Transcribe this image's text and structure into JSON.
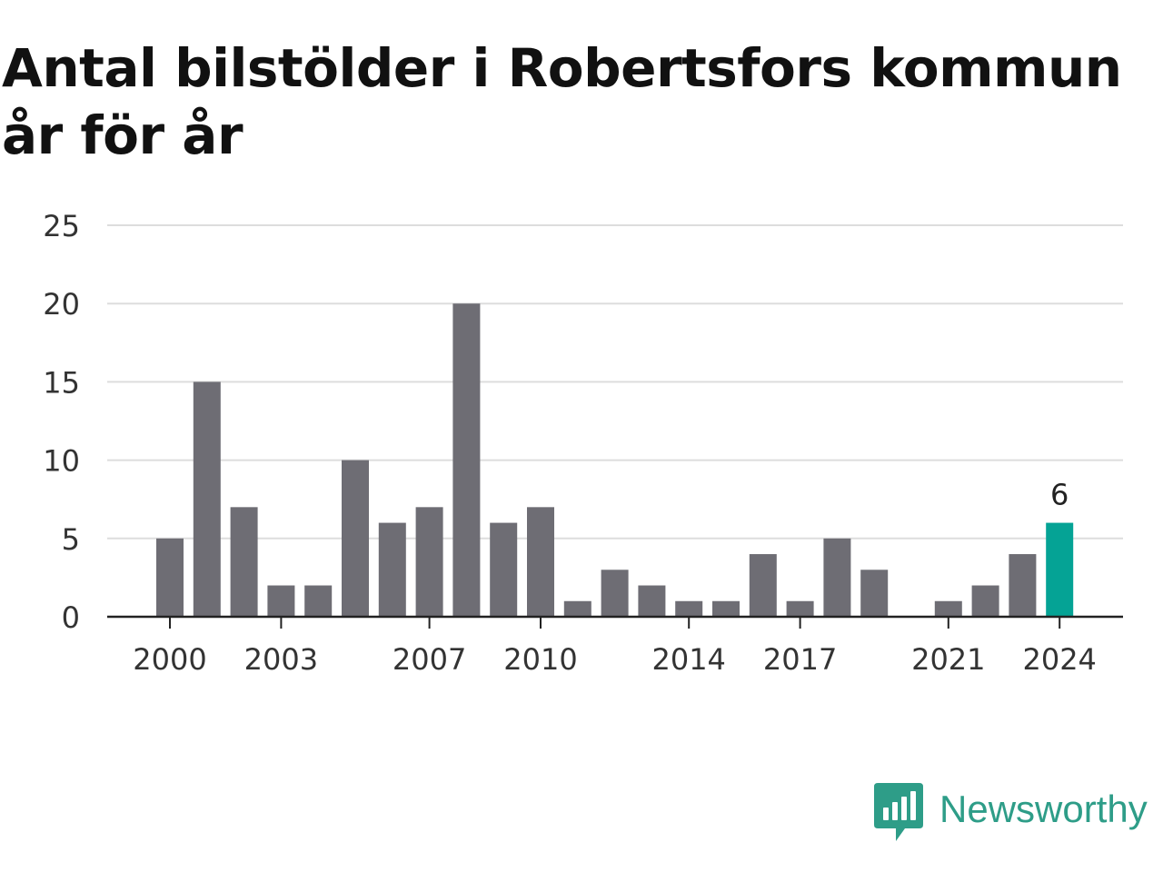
{
  "title": "Antal bilstölder i Robertsfors kommun år för år",
  "brand": {
    "name": "Newsworthy",
    "icon": "newsworthy-logo-icon",
    "color": "#2e9d88"
  },
  "colors": {
    "bar": "#6e6d74",
    "highlight": "#05a395",
    "grid": "#dddddd",
    "axis": "#222222",
    "text": "#333333"
  },
  "chart_data": {
    "type": "bar",
    "categories": [
      "2000",
      "2001",
      "2002",
      "2003",
      "2004",
      "2005",
      "2006",
      "2007",
      "2008",
      "2009",
      "2010",
      "2011",
      "2012",
      "2013",
      "2014",
      "2015",
      "2016",
      "2017",
      "2018",
      "2019",
      "2020",
      "2021",
      "2022",
      "2023",
      "2024"
    ],
    "values": [
      5,
      15,
      7,
      2,
      2,
      10,
      6,
      7,
      20,
      6,
      7,
      1,
      3,
      2,
      1,
      1,
      4,
      1,
      5,
      3,
      0,
      1,
      2,
      4,
      6
    ],
    "highlight_category": "2024",
    "highlight_label": "6",
    "ylim": [
      0,
      25
    ],
    "yticks": [
      0,
      5,
      10,
      15,
      20,
      25
    ],
    "xtick_labels": [
      "2000",
      "2003",
      "2007",
      "2010",
      "2014",
      "2017",
      "2021",
      "2024"
    ],
    "grid": true,
    "legend": "none",
    "title": "Antal bilstölder i Robertsfors kommun år för år",
    "xlabel": "",
    "ylabel": ""
  }
}
